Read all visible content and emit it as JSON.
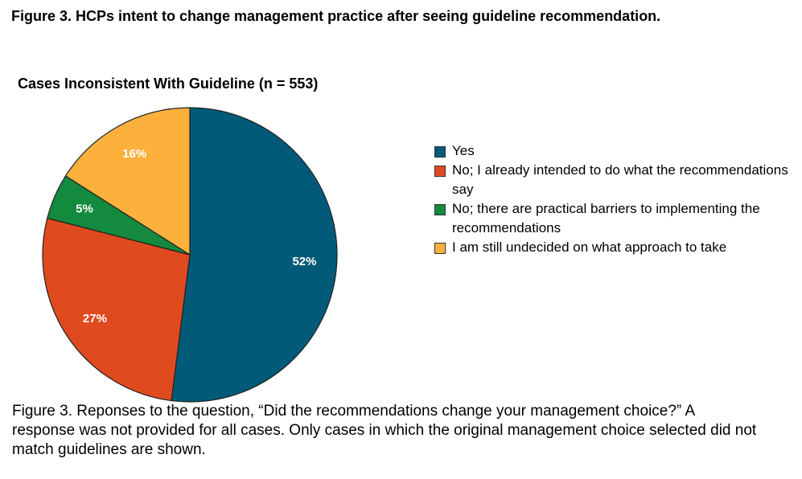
{
  "figure_title": "Figure 3. HCPs intent to change management practice after seeing guideline recommendation.",
  "chart_data": {
    "type": "pie",
    "title": "Cases Inconsistent With Guideline (n = 553)",
    "categories": [
      "Yes",
      "No; I already intended to do what the recommendations say",
      "No; there are practical barriers to implementing the recommendations",
      "I am still undecided on what approach to take"
    ],
    "values": [
      52,
      27,
      5,
      16
    ],
    "value_labels": [
      "52%",
      "27%",
      "5%",
      "16%"
    ],
    "colors": [
      "#005a78",
      "#e04a1f",
      "#138a3d",
      "#fbb13c"
    ]
  },
  "caption": "Figure 3. Reponses to the question, “Did the recommendations change your management choice?” A response was not provided for all cases. Only cases in which the original management choice selected did not match guidelines are shown."
}
